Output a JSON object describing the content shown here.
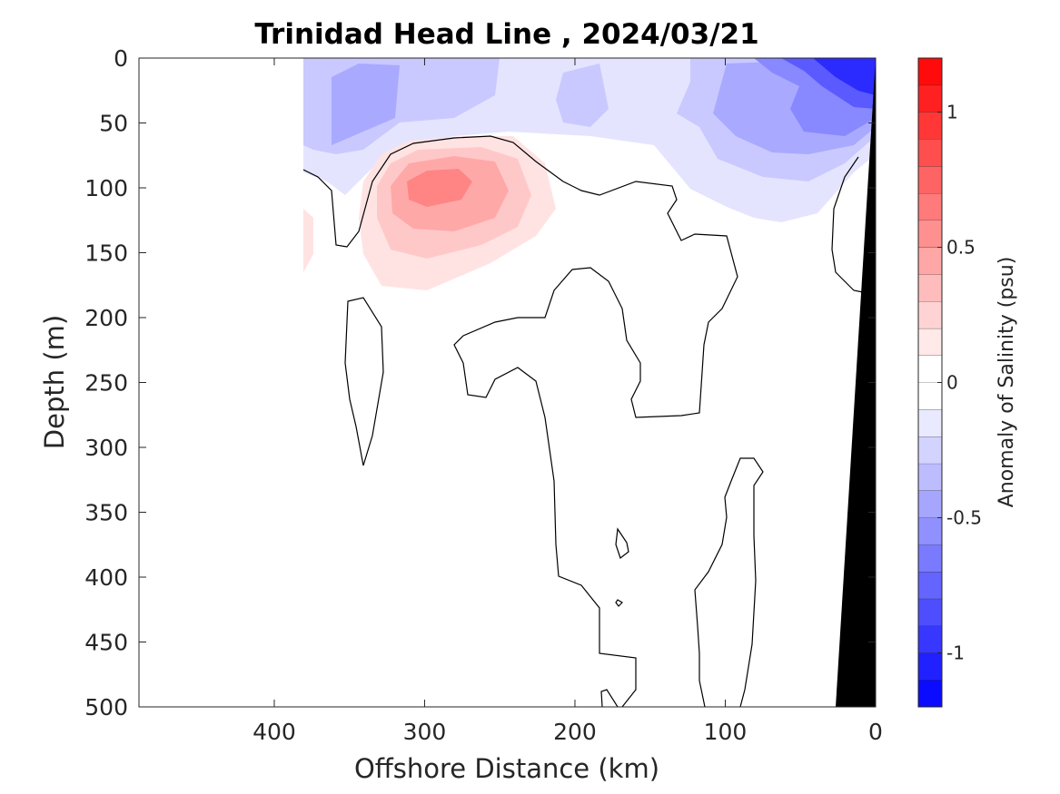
{
  "chart_data": {
    "type": "heatmap",
    "title": "Trinidad Head Line , 2024/03/21",
    "xlabel": "Offshore Distance (km)",
    "ylabel": "Depth (m)",
    "colorbar_label": "Anomaly of Salinity (psu)",
    "xlim": [
      490,
      0
    ],
    "ylim": [
      0,
      500
    ],
    "x_reversed": true,
    "y_reversed": true,
    "x_ticks": [
      400,
      300,
      200,
      100,
      0
    ],
    "y_ticks": [
      0,
      50,
      100,
      150,
      200,
      250,
      300,
      350,
      400,
      450,
      500
    ],
    "colorbar_range": [
      -1.2,
      1.2
    ],
    "colorbar_step": 0.1,
    "colorbar_ticks": [
      -1,
      -0.5,
      0,
      0.5,
      1
    ],
    "contour_level_drawn": 0,
    "data_extent_x_km": [
      380,
      0
    ],
    "features": [
      {
        "kind": "positive",
        "center_x_km": 285,
        "center_depth_m": 95,
        "peak_anomaly_psu": 0.6
      },
      {
        "kind": "negative",
        "center_x_km": 20,
        "center_depth_m": 10,
        "peak_anomaly_psu": -1.0
      },
      {
        "kind": "negative",
        "center_x_km": 340,
        "center_depth_m": 30,
        "peak_anomaly_psu": -0.4
      },
      {
        "kind": "negative",
        "center_x_km": 60,
        "center_depth_m": 45,
        "peak_anomaly_psu": -0.6
      }
    ],
    "grid": false,
    "legend_position": "colorbar-right"
  },
  "colors": {
    "negative_max": "#0000ff",
    "positive_max": "#ff0000",
    "bathymetry": "#000000",
    "axis": "#262626"
  }
}
